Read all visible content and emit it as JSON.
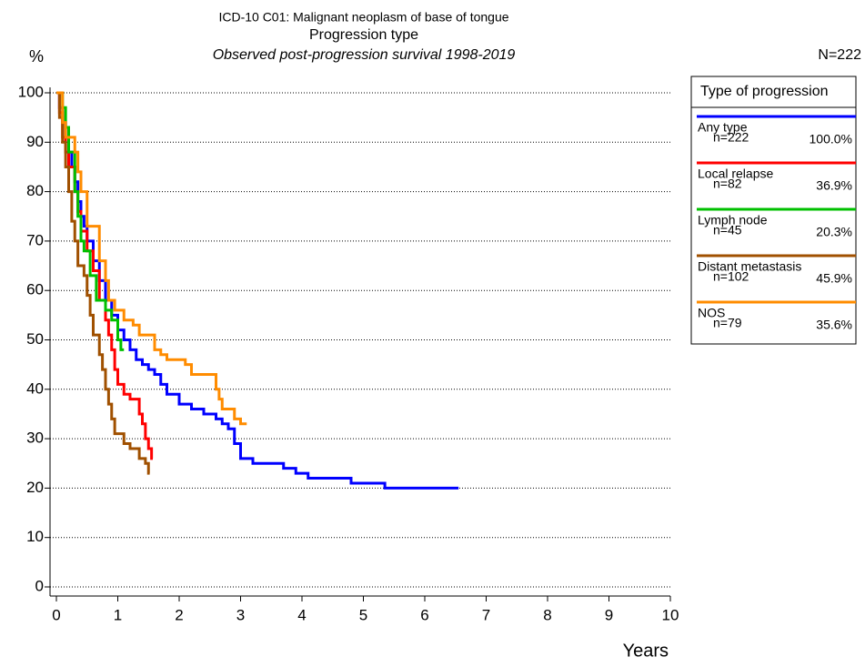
{
  "chart_data": {
    "type": "line",
    "title": "ICD-10 C01: Malignant neoplasm of base of tongue",
    "subtitle": "Progression type",
    "caption": "Observed post-progression survival 1998-2019",
    "total": "N=222",
    "y_label": "%",
    "x_label": "Years",
    "legend_title": "Type of progression",
    "xlim": [
      0,
      10
    ],
    "xticks": [
      0,
      1,
      2,
      3,
      4,
      5,
      6,
      7,
      8,
      9,
      10
    ],
    "ylim": [
      0,
      100
    ],
    "yticks": [
      0,
      10,
      20,
      30,
      40,
      50,
      60,
      70,
      80,
      90,
      100
    ],
    "grid": true,
    "step": true,
    "series": [
      {
        "name": "Any type",
        "n": "n=222",
        "share": "100.0%",
        "color": "#0000ff",
        "x": [
          0,
          0.05,
          0.1,
          0.15,
          0.2,
          0.25,
          0.3,
          0.35,
          0.4,
          0.45,
          0.5,
          0.6,
          0.7,
          0.8,
          0.9,
          1.0,
          1.1,
          1.2,
          1.3,
          1.4,
          1.5,
          1.6,
          1.7,
          1.8,
          2.0,
          2.2,
          2.4,
          2.6,
          2.7,
          2.8,
          2.9,
          3.0,
          3.2,
          3.7,
          3.9,
          4.1,
          4.8,
          5.35,
          6.55
        ],
        "values": [
          100,
          97,
          94,
          91,
          88,
          85,
          82,
          78,
          75,
          73,
          70,
          66,
          62,
          58,
          55,
          52,
          50,
          48,
          46,
          45,
          44,
          43,
          41,
          39,
          37,
          36,
          35,
          34,
          33,
          32,
          29,
          26,
          25,
          24,
          23,
          22,
          21,
          20,
          20
        ]
      },
      {
        "name": "Local relapse",
        "n": "n=82",
        "share": "36.9%",
        "color": "#ff0000",
        "x": [
          0,
          0.05,
          0.1,
          0.15,
          0.2,
          0.3,
          0.35,
          0.4,
          0.5,
          0.6,
          0.7,
          0.8,
          0.85,
          0.9,
          0.95,
          1.0,
          1.1,
          1.2,
          1.35,
          1.4,
          1.45,
          1.5,
          1.55,
          1.57
        ],
        "values": [
          100,
          96,
          91,
          88,
          85,
          80,
          76,
          72,
          68,
          64,
          58,
          54,
          51,
          48,
          44,
          41,
          39,
          38,
          35,
          33,
          30,
          28,
          26,
          26
        ]
      },
      {
        "name": "Lymph node",
        "n": "n=45",
        "share": "20.3%",
        "color": "#00c000",
        "x": [
          0,
          0.1,
          0.15,
          0.2,
          0.3,
          0.35,
          0.4,
          0.45,
          0.55,
          0.65,
          0.8,
          0.9,
          1.0,
          1.05,
          1.1
        ],
        "values": [
          100,
          97,
          93,
          88,
          80,
          75,
          70,
          68,
          63,
          58,
          56,
          54,
          50,
          48,
          48
        ]
      },
      {
        "name": "Distant metastasis",
        "n": "n=102",
        "share": "45.9%",
        "color": "#a05000",
        "x": [
          0,
          0.05,
          0.1,
          0.15,
          0.2,
          0.25,
          0.3,
          0.35,
          0.45,
          0.5,
          0.55,
          0.6,
          0.7,
          0.75,
          0.8,
          0.85,
          0.9,
          0.95,
          1.1,
          1.2,
          1.35,
          1.45,
          1.5,
          1.52
        ],
        "values": [
          100,
          95,
          90,
          85,
          80,
          74,
          70,
          65,
          63,
          59,
          55,
          51,
          47,
          44,
          40,
          37,
          34,
          31,
          29,
          28,
          26,
          25,
          23,
          23
        ]
      },
      {
        "name": "NOS",
        "n": "n=79",
        "share": "35.6%",
        "color": "#ff8c00",
        "x": [
          0,
          0.1,
          0.15,
          0.3,
          0.35,
          0.4,
          0.5,
          0.7,
          0.8,
          0.85,
          0.95,
          1.1,
          1.25,
          1.35,
          1.6,
          1.7,
          1.8,
          2.1,
          2.2,
          2.6,
          2.65,
          2.7,
          2.9,
          3.0,
          3.1
        ],
        "values": [
          100,
          94,
          91,
          88,
          84,
          80,
          73,
          66,
          62,
          58,
          56,
          54,
          53,
          51,
          48,
          47,
          46,
          45,
          43,
          40,
          38,
          36,
          34,
          33,
          33
        ]
      }
    ]
  }
}
